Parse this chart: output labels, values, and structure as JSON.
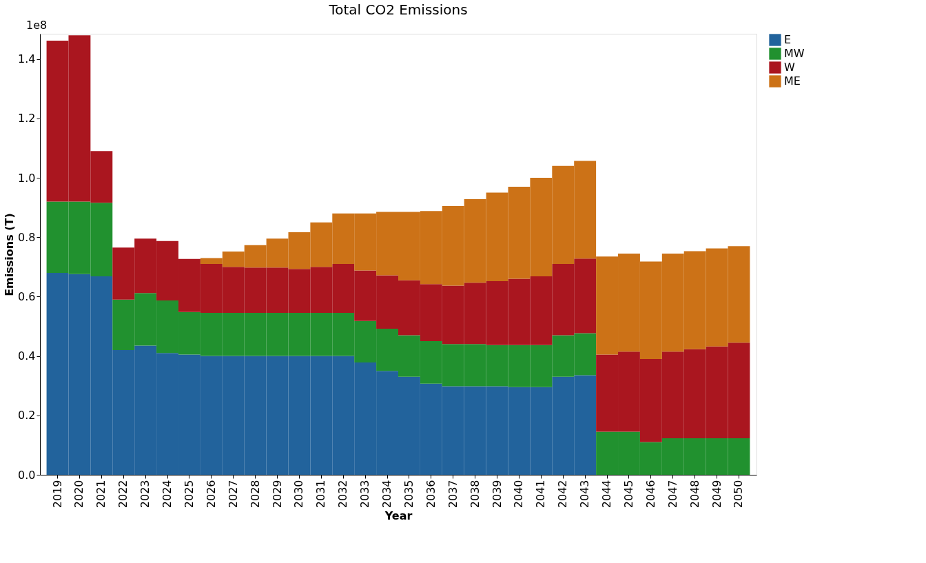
{
  "chart_data": {
    "type": "bar",
    "stacked": true,
    "title": "Total CO2 Emissions",
    "xlabel": "Year",
    "ylabel": "Emissions (T)",
    "annotations": [
      "1e8"
    ],
    "categories": [
      "2019",
      "2020",
      "2021",
      "2022",
      "2023",
      "2024",
      "2025",
      "2026",
      "2027",
      "2028",
      "2029",
      "2030",
      "2031",
      "2032",
      "2033",
      "2034",
      "2035",
      "2036",
      "2037",
      "2038",
      "2039",
      "2040",
      "2041",
      "2042",
      "2043",
      "2044",
      "2045",
      "2046",
      "2047",
      "2048",
      "2049",
      "2050"
    ],
    "series": [
      {
        "name": "E",
        "color": "#22639c",
        "values": [
          0.68,
          0.676,
          0.668,
          0.42,
          0.435,
          0.41,
          0.405,
          0.4,
          0.4,
          0.4,
          0.4,
          0.4,
          0.4,
          0.4,
          0.378,
          0.35,
          0.33,
          0.307,
          0.298,
          0.298,
          0.298,
          0.295,
          0.295,
          0.33,
          0.335,
          0,
          0,
          0,
          0,
          0,
          0,
          0
        ]
      },
      {
        "name": "MW",
        "color": "#21912f",
        "values": [
          0.24,
          0.244,
          0.248,
          0.17,
          0.177,
          0.177,
          0.143,
          0.145,
          0.145,
          0.145,
          0.145,
          0.145,
          0.145,
          0.145,
          0.14,
          0.142,
          0.14,
          0.143,
          0.142,
          0.142,
          0.139,
          0.142,
          0.142,
          0.14,
          0.142,
          0.145,
          0.145,
          0.11,
          0.123,
          0.123,
          0.123,
          0.123
        ]
      },
      {
        "name": "W",
        "color": "#aa161f",
        "values": [
          0.542,
          0.56,
          0.174,
          0.175,
          0.183,
          0.2,
          0.179,
          0.165,
          0.155,
          0.153,
          0.153,
          0.148,
          0.155,
          0.165,
          0.17,
          0.18,
          0.185,
          0.192,
          0.197,
          0.207,
          0.215,
          0.223,
          0.231,
          0.24,
          0.251,
          0.26,
          0.27,
          0.28,
          0.292,
          0.3,
          0.309,
          0.322
        ]
      },
      {
        "name": "ME",
        "color": "#cc7217",
        "values": [
          0,
          0,
          0,
          0,
          0,
          0,
          0,
          0.02,
          0.052,
          0.075,
          0.097,
          0.124,
          0.15,
          0.17,
          0.192,
          0.213,
          0.23,
          0.246,
          0.268,
          0.281,
          0.298,
          0.31,
          0.332,
          0.33,
          0.329,
          0.33,
          0.33,
          0.328,
          0.33,
          0.33,
          0.33,
          0.325
        ]
      }
    ],
    "ylim": [
      0,
      1.485
    ],
    "yticks": [
      {
        "value": 0,
        "label": "0.0"
      },
      0.2,
      0.4,
      0.6,
      0.8,
      {
        "value": 1,
        "label": "1.0"
      },
      1.2,
      1.4
    ],
    "grid": false,
    "legend": "right"
  }
}
